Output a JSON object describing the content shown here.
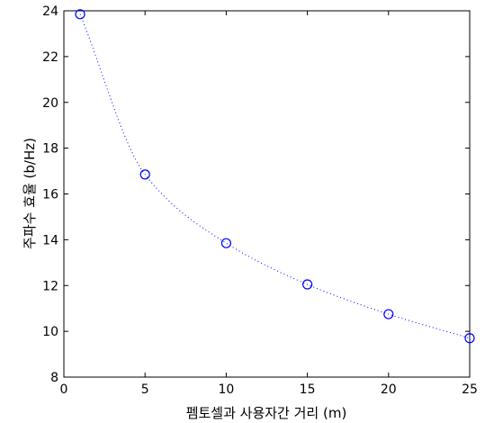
{
  "chart_data": {
    "type": "line",
    "title": "",
    "xlabel": "펨토셀과 사용자간 거리 (m)",
    "ylabel": "주파수 효율 (b/Hz)",
    "xlim": [
      0,
      25
    ],
    "ylim": [
      8,
      24
    ],
    "xticks": [
      0,
      5,
      10,
      15,
      20,
      25
    ],
    "yticks": [
      8,
      10,
      12,
      14,
      16,
      18,
      20,
      22,
      24
    ],
    "grid": false,
    "line_style": "dotted",
    "marker": "circle",
    "color": "#0000ff",
    "series": [
      {
        "x": [
          1,
          5,
          10,
          15,
          20,
          25
        ],
        "y": [
          23.85,
          16.85,
          13.85,
          12.05,
          10.75,
          9.7
        ]
      }
    ]
  }
}
